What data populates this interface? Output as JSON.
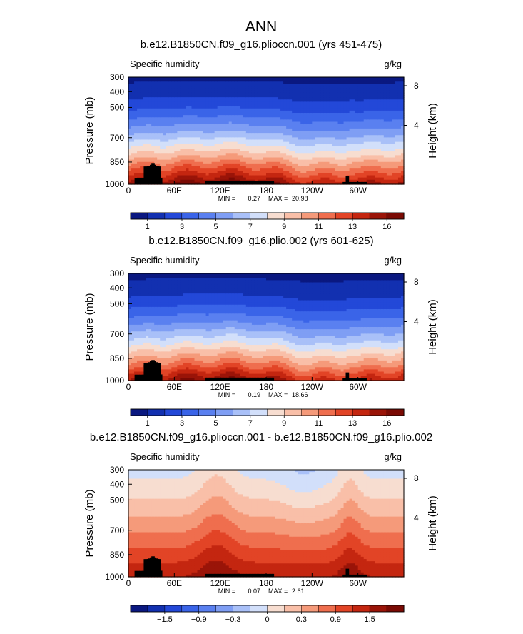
{
  "figure": {
    "title": "ANN"
  },
  "colors": {
    "abs_scale": [
      "#0a1880",
      "#1230b0",
      "#2348d8",
      "#3a64e8",
      "#5a80f0",
      "#7f9ef4",
      "#a9c0f8",
      "#d2dffa",
      "#f7ddd0",
      "#f9bfa8",
      "#f59a7a",
      "#ef6e4e",
      "#e24426",
      "#c42610",
      "#9a1408",
      "#7a0a04"
    ],
    "diff_scale": [
      "#0a1880",
      "#1230b0",
      "#2348d8",
      "#3a64e8",
      "#5a80f0",
      "#7f9ef4",
      "#a9c0f8",
      "#d2dffa",
      "#f7ddd0",
      "#f9bfa8",
      "#f59a7a",
      "#ef6e4e",
      "#e24426",
      "#c42610",
      "#9a1408",
      "#7a0a04"
    ],
    "terrain": "#000000"
  },
  "chart_data": [
    {
      "type": "heatmap",
      "title": "b.e12.B1850CN.f09_g16.plioccn.001 (yrs 451-475)",
      "left_label": "Specific humidity",
      "right_label": "g/kg",
      "ylabel": "Pressure (mb)",
      "y2label": "Height (km)",
      "yticks": [
        "300",
        "400",
        "500",
        "700",
        "850",
        "1000"
      ],
      "yvalues": [
        300,
        400,
        500,
        700,
        850,
        1000
      ],
      "y2ticks": [
        "8",
        "4"
      ],
      "y2values": [
        8,
        4
      ],
      "xticks": [
        "0",
        "60E",
        "120E",
        "180",
        "120W",
        "60W"
      ],
      "xvalues": [
        0,
        60,
        120,
        180,
        240,
        300
      ],
      "xlim": [
        0,
        360
      ],
      "ylim": [
        1000,
        300
      ],
      "min_label": "MIN =",
      "min_value": "0.27",
      "max_label": "MAX =",
      "max_value": "20.98",
      "colorbar_labels": [
        "1",
        "3",
        "5",
        "7",
        "9",
        "11",
        "13",
        "16"
      ],
      "scale": "abs",
      "field": "abs",
      "cb_variant": "A"
    },
    {
      "type": "heatmap",
      "title": "b.e12.B1850CN.f09_g16.plio.002 (yrs 601-625)",
      "left_label": "Specific humidity",
      "right_label": "g/kg",
      "ylabel": "Pressure (mb)",
      "y2label": "Height (km)",
      "yticks": [
        "300",
        "400",
        "500",
        "700",
        "850",
        "1000"
      ],
      "yvalues": [
        300,
        400,
        500,
        700,
        850,
        1000
      ],
      "y2ticks": [
        "8",
        "4"
      ],
      "y2values": [
        8,
        4
      ],
      "xticks": [
        "0",
        "60E",
        "120E",
        "180",
        "120W",
        "60W"
      ],
      "xvalues": [
        0,
        60,
        120,
        180,
        240,
        300
      ],
      "xlim": [
        0,
        360
      ],
      "ylim": [
        1000,
        300
      ],
      "min_label": "MIN =",
      "min_value": "0.19",
      "max_label": "MAX =",
      "max_value": "18.66",
      "colorbar_labels": [
        "1",
        "3",
        "5",
        "7",
        "9",
        "11",
        "13",
        "16"
      ],
      "scale": "abs",
      "field": "abs",
      "cb_variant": "A"
    },
    {
      "type": "heatmap",
      "title": "b.e12.B1850CN.f09_g16.plioccn.001 - b.e12.B1850CN.f09_g16.plio.002",
      "left_label": "Specific humidity",
      "right_label": "g/kg",
      "ylabel": "Pressure (mb)",
      "y2label": "Height (km)",
      "yticks": [
        "300",
        "400",
        "500",
        "700",
        "850",
        "1000"
      ],
      "yvalues": [
        300,
        400,
        500,
        700,
        850,
        1000
      ],
      "y2ticks": [
        "8",
        "4"
      ],
      "y2values": [
        8,
        4
      ],
      "xticks": [
        "0",
        "60E",
        "120E",
        "180",
        "120W",
        "60W"
      ],
      "xvalues": [
        0,
        60,
        120,
        180,
        240,
        300
      ],
      "xlim": [
        0,
        360
      ],
      "ylim": [
        1000,
        300
      ],
      "min_label": "MIN =",
      "min_value": "0.07",
      "max_label": "MAX =",
      "max_value": "2.61",
      "colorbar_labels": [
        "−1.5",
        "−0.9",
        "−0.3",
        "0",
        "0.3",
        "0.9",
        "1.5"
      ],
      "scale": "diff",
      "field": "diff",
      "cb_variant": "B"
    }
  ]
}
